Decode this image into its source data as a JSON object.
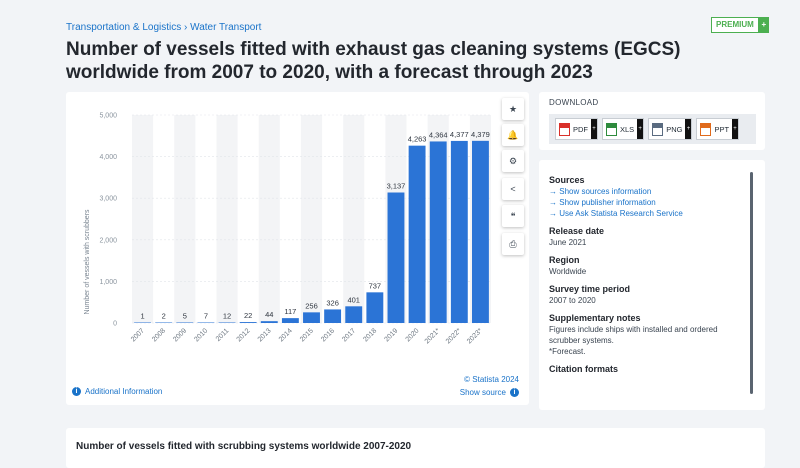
{
  "breadcrumb": "Transportation & Logistics › Water Transport",
  "premium": {
    "label": "PREMIUM",
    "plus": "+"
  },
  "title": "Number of vessels fitted with exhaust gas cleaning systems (EGCS) worldwide from 2007 to 2020, with a forecast through 2023",
  "chart_data": {
    "type": "bar",
    "categories": [
      "2007",
      "2008",
      "2009",
      "2010",
      "2011",
      "2012",
      "2013",
      "2014",
      "2015",
      "2016",
      "2017",
      "2018",
      "2019",
      "2020",
      "2021*",
      "2022*",
      "2023*"
    ],
    "values": [
      1,
      2,
      5,
      7,
      12,
      22,
      44,
      117,
      256,
      326,
      401,
      737,
      3137,
      4263,
      4364,
      4377,
      4379
    ],
    "data_labels": [
      "1",
      "2",
      "5",
      "7",
      "12",
      "22",
      "44",
      "117",
      "256",
      "326",
      "401",
      "737",
      "3,137",
      "4,263",
      "4,364",
      "4,377",
      "4,379"
    ],
    "title": "",
    "xlabel": "",
    "ylabel": "Number of vessels with scrubbers",
    "ylim": [
      0,
      5000
    ],
    "yticks": [
      "0",
      "1,000",
      "2,000",
      "3,000",
      "4,000",
      "5,000"
    ],
    "ytick_values": [
      0,
      1000,
      2000,
      3000,
      4000,
      5000
    ],
    "bar_color": "#2b74d6",
    "grid": true
  },
  "chart_tools": {
    "star": "★",
    "bell": "🔔",
    "gear": "⚙",
    "share": "<",
    "quote": "❝",
    "print": "⎙"
  },
  "footer": {
    "additional_info": "Additional Information",
    "credit": "© Statista 2024",
    "show_source": "Show source"
  },
  "download": {
    "heading": "DOWNLOAD",
    "buttons": [
      {
        "label": "PDF",
        "color": "#d9302a"
      },
      {
        "label": "XLS",
        "color": "#2e8b3d"
      },
      {
        "label": "PNG",
        "color": "#5a6b80"
      },
      {
        "label": "PPT",
        "color": "#e06a1b"
      }
    ]
  },
  "info": {
    "sources_heading": "Sources",
    "source_links": [
      "Show sources information",
      "Show publisher information",
      "Use Ask Statista Research Service"
    ],
    "release_heading": "Release date",
    "release_value": "June 2021",
    "region_heading": "Region",
    "region_value": "Worldwide",
    "survey_heading": "Survey time period",
    "survey_value": "2007 to 2020",
    "notes_heading": "Supplementary notes",
    "notes_value": "Figures include ships with installed and ordered scrubber systems.",
    "notes_forecast": "*Forecast.",
    "citation_heading": "Citation formats"
  },
  "related_title": "Number of vessels fitted with scrubbing systems worldwide 2007-2020"
}
